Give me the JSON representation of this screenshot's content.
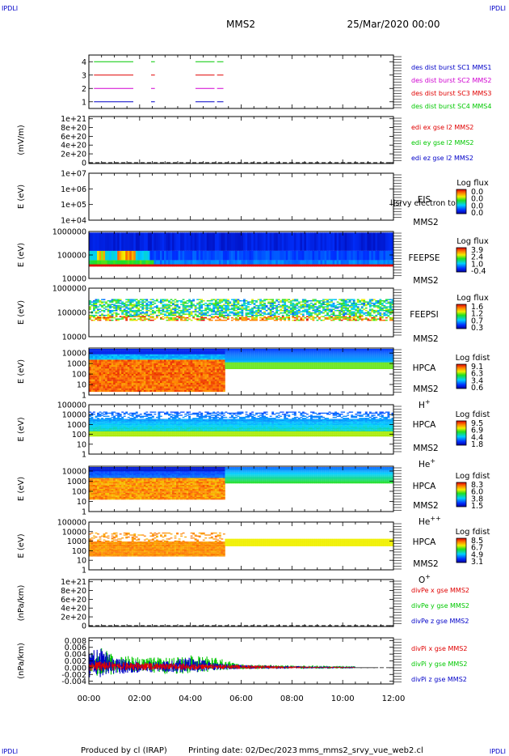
{
  "corner": {
    "left": "IPDLI",
    "right": "IPDLI"
  },
  "header": {
    "spacecraft": "MMS2",
    "datetime": "25/Mar/2020 00:00"
  },
  "footer": {
    "producer": "Produced by cl (IRAP)",
    "printing": "Printing date: 02/Dec/2023",
    "file": "mms_mms2_srvy_vue_web2.cl"
  },
  "colors": {
    "green": "#00c800",
    "red": "#e00000",
    "magenta": "#d000d0",
    "blue": "#0000c8",
    "dashed": "#000000"
  },
  "x_axis": {
    "range_hours": [
      0,
      12
    ],
    "tick_labels": [
      "00:00",
      "02:00",
      "04:00",
      "06:00",
      "08:00",
      "10:00",
      "12:00"
    ]
  },
  "chart_data": [
    {
      "type": "line",
      "id": "dist",
      "ylabel": "",
      "ytick_labels": [
        "4",
        "3",
        "2",
        "1"
      ],
      "ylim": [
        0.5,
        4.5
      ],
      "legend": [
        {
          "label": "des dist burst SC1 MMS1",
          "color": "#0000c8"
        },
        {
          "label": "des dist burst SC2 MMS2",
          "color": "#d000d0"
        },
        {
          "label": "des dist burst SC3 MMS3",
          "color": "#e00000"
        },
        {
          "label": "des dist burst SC4 MMS4",
          "color": "#00c800"
        }
      ],
      "series": [
        {
          "y": 4,
          "color": "#00c800",
          "intervals_hours": [
            [
              0.2,
              1.75
            ],
            [
              2.45,
              2.6
            ],
            [
              4.2,
              4.95
            ],
            [
              5.05,
              5.3
            ]
          ]
        },
        {
          "y": 3,
          "color": "#e00000",
          "intervals_hours": [
            [
              0.2,
              1.75
            ],
            [
              2.45,
              2.6
            ],
            [
              4.2,
              4.95
            ],
            [
              5.05,
              5.3
            ]
          ]
        },
        {
          "y": 2,
          "color": "#d000d0",
          "intervals_hours": [
            [
              0.2,
              1.75
            ],
            [
              2.45,
              2.6
            ],
            [
              4.2,
              4.95
            ],
            [
              5.05,
              5.3
            ]
          ]
        },
        {
          "y": 1,
          "color": "#0000c8",
          "intervals_hours": [
            [
              0.2,
              1.75
            ],
            [
              2.45,
              2.6
            ],
            [
              4.2,
              4.95
            ],
            [
              5.05,
              5.3
            ]
          ]
        }
      ]
    },
    {
      "type": "line",
      "id": "edi",
      "ylabel": "(mV/m)",
      "ytick_labels": [
        "1e+21",
        "8e+20",
        "6e+20",
        "4e+20",
        "2e+20",
        "0"
      ],
      "ytick_values": [
        1e+21,
        8e+20,
        6e+20,
        4e+20,
        2e+20,
        0
      ],
      "ylim": [
        -2e+19,
        1.05e+21
      ],
      "reference_line": 0,
      "legend": [
        {
          "label": "edi ex gse l2 MMS2",
          "color": "#e00000"
        },
        {
          "label": "edi ey gse l2 MMS2",
          "color": "#00c800"
        },
        {
          "label": "edi ez gse l2 MMS2",
          "color": "#0000c8"
        }
      ]
    },
    {
      "type": "heatmap",
      "id": "eis",
      "ylabel": "E (eV)",
      "ytick_labels": [
        "1e+07",
        "1e+06",
        "1e+05",
        "1e+04"
      ],
      "log_scale": true,
      "ylim": [
        10000,
        10000000
      ],
      "instrument": [
        "EIS",
        "MMS2"
      ],
      "overlay_text": "l]srvy electron to",
      "colorbar": {
        "title": "Log flux",
        "tick_labels": [
          "0.0",
          "0.0",
          "0.0",
          "0.0"
        ]
      },
      "empty": true
    },
    {
      "type": "heatmap",
      "id": "feepse",
      "ylabel": "E (eV)",
      "ytick_labels": [
        "1000000",
        "100000",
        "10000"
      ],
      "log_scale": true,
      "ylim": [
        10000,
        1000000
      ],
      "instrument": [
        "FEEPSE",
        "MMS2"
      ],
      "colorbar": {
        "title": "Log flux",
        "tick_labels": [
          "3.9",
          "2.4",
          "1.0",
          "-0.4"
        ],
        "range": [
          -0.4,
          3.9
        ]
      }
    },
    {
      "type": "heatmap",
      "id": "feepsi",
      "ylabel": "E (eV)",
      "ytick_labels": [
        "1000000",
        "100000",
        "10000"
      ],
      "log_scale": true,
      "ylim": [
        10000,
        1000000
      ],
      "instrument": [
        "FEEPSI",
        "MMS2"
      ],
      "colorbar": {
        "title": "Log flux",
        "tick_labels": [
          "1.6",
          "1.2",
          "0.7",
          "0.3"
        ],
        "range": [
          0.3,
          1.6
        ]
      }
    },
    {
      "type": "heatmap",
      "id": "hpca_h",
      "ylabel": "E (eV)",
      "ytick_labels": [
        "10000",
        "1000",
        "100",
        "10",
        "1"
      ],
      "log_scale": true,
      "ylim": [
        1,
        30000
      ],
      "instrument": [
        "HPCA",
        "MMS2"
      ],
      "species": {
        "base": "H",
        "sup": "+"
      },
      "colorbar": {
        "title": "Log fdist",
        "tick_labels": [
          "9.1",
          "6.3",
          "3.4",
          "0.6"
        ],
        "range": [
          0.6,
          9.1
        ]
      }
    },
    {
      "type": "heatmap",
      "id": "hpca_he",
      "ylabel": "E (eV)",
      "ytick_labels": [
        "100000",
        "10000",
        "1000",
        "100",
        "10",
        "1"
      ],
      "log_scale": true,
      "ylim": [
        1,
        100000
      ],
      "instrument": [
        "HPCA",
        "MMS2"
      ],
      "species": {
        "base": "He",
        "sup": "+"
      },
      "colorbar": {
        "title": "Log fdist",
        "tick_labels": [
          "9.5",
          "6.9",
          "4.4",
          "1.8"
        ],
        "range": [
          1.8,
          9.5
        ]
      }
    },
    {
      "type": "heatmap",
      "id": "hpca_hepp",
      "ylabel": "E (eV)",
      "ytick_labels": [
        "10000",
        "1000",
        "100",
        "10",
        "1"
      ],
      "log_scale": true,
      "ylim": [
        1,
        30000
      ],
      "instrument": [
        "HPCA",
        "MMS2"
      ],
      "species": {
        "base": "He",
        "sup": "++"
      },
      "colorbar": {
        "title": "Log fdist",
        "tick_labels": [
          "8.3",
          "6.0",
          "3.8",
          "1.5"
        ],
        "range": [
          1.5,
          8.3
        ]
      }
    },
    {
      "type": "heatmap",
      "id": "hpca_o",
      "ylabel": "E (eV)",
      "ytick_labels": [
        "100000",
        "10000",
        "1000",
        "100",
        "10",
        "1"
      ],
      "log_scale": true,
      "ylim": [
        1,
        100000
      ],
      "instrument": [
        "HPCA",
        "MMS2"
      ],
      "species": {
        "base": "O",
        "sup": "+"
      },
      "colorbar": {
        "title": "Log fdist",
        "tick_labels": [
          "8.5",
          "6.7",
          "4.9",
          "3.1"
        ],
        "range": [
          3.1,
          8.5
        ]
      }
    },
    {
      "type": "line",
      "id": "divpe",
      "ylabel": "(nPa/km)",
      "ytick_labels": [
        "1e+21",
        "8e+20",
        "6e+20",
        "4e+20",
        "2e+20",
        "0"
      ],
      "ytick_values": [
        1e+21,
        8e+20,
        6e+20,
        4e+20,
        2e+20,
        0
      ],
      "ylim": [
        -2e+19,
        1.05e+21
      ],
      "reference_line": 0,
      "legend": [
        {
          "label": "divPe x gse MMS2",
          "color": "#e00000"
        },
        {
          "label": "divPe y gse MMS2",
          "color": "#00c800"
        },
        {
          "label": "divPe z gse MMS2",
          "color": "#0000c8"
        }
      ]
    },
    {
      "type": "line",
      "id": "divpi",
      "ylabel": "(nPa/km)",
      "ytick_labels": [
        "0.008",
        "0.006",
        "0.004",
        "0.002",
        "0.000",
        "-0.002",
        "-0.004"
      ],
      "ytick_values": [
        0.008,
        0.006,
        0.004,
        0.002,
        0.0,
        -0.002,
        -0.004
      ],
      "ylim": [
        -0.0048,
        0.0088
      ],
      "reference_line": 0,
      "legend": [
        {
          "label": "divPi x gse MMS2",
          "color": "#e00000"
        },
        {
          "label": "divPi y gse MMS2",
          "color": "#00c800"
        },
        {
          "label": "divPi z gse MMS2",
          "color": "#0000c8"
        }
      ],
      "series": [
        {
          "name": "divPi y gse MMS2",
          "color": "#00c800",
          "envelope": [
            [
              0.0,
              -0.002,
              0.004
            ],
            [
              0.5,
              -0.003,
              0.006
            ],
            [
              1.0,
              -0.002,
              0.004
            ],
            [
              2.0,
              -0.001,
              0.003
            ],
            [
              3.0,
              -0.002,
              0.003
            ],
            [
              4.0,
              -0.002,
              0.004
            ],
            [
              5.0,
              -0.001,
              0.003
            ],
            [
              6.0,
              -0.0005,
              0.001
            ],
            [
              8.0,
              -0.0004,
              0.0007
            ],
            [
              10.5,
              -0.0003,
              0.0005
            ]
          ]
        },
        {
          "name": "divPi z gse MMS2",
          "color": "#0000c8",
          "envelope": [
            [
              0.0,
              -0.003,
              0.005
            ],
            [
              0.5,
              -0.003,
              0.006
            ],
            [
              1.0,
              -0.002,
              0.003
            ],
            [
              2.0,
              -0.0015,
              0.002
            ],
            [
              3.0,
              -0.0015,
              0.002
            ],
            [
              4.0,
              -0.0015,
              0.003
            ],
            [
              5.0,
              -0.0008,
              0.0015
            ],
            [
              6.0,
              -0.0004,
              0.0008
            ],
            [
              8.0,
              -0.0003,
              0.0005
            ],
            [
              10.5,
              -0.0002,
              0.0003
            ]
          ]
        },
        {
          "name": "divPi x gse MMS2",
          "color": "#e00000",
          "envelope": [
            [
              0.0,
              -0.001,
              0.002
            ],
            [
              2.0,
              -0.0008,
              0.0015
            ],
            [
              5.0,
              -0.0005,
              0.001
            ],
            [
              8.0,
              -0.0002,
              0.0004
            ],
            [
              10.5,
              -0.0001,
              0.0002
            ]
          ]
        }
      ]
    }
  ]
}
